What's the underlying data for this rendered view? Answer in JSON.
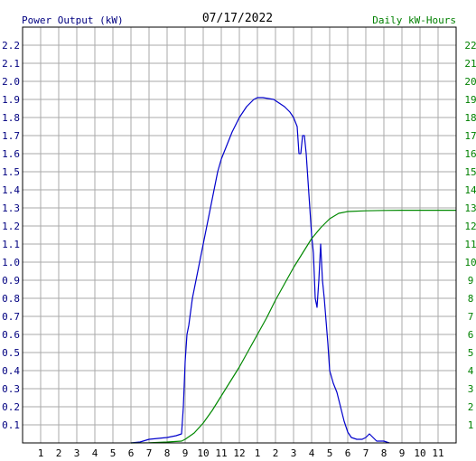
{
  "chart_data": {
    "type": "line",
    "title": "07/17/2022",
    "ylabel_left": "Power Output (kW)",
    "ylabel_right": "Daily kW-Hours",
    "x_ticks": [
      "1",
      "2",
      "3",
      "4",
      "5",
      "6",
      "7",
      "8",
      "9",
      "10",
      "11",
      "12",
      "1",
      "2",
      "3",
      "4",
      "5",
      "6",
      "7",
      "8",
      "9",
      "10",
      "11"
    ],
    "x_range": [
      0,
      24
    ],
    "ylim_left": [
      0,
      2.3
    ],
    "ylim_right": [
      0,
      23
    ],
    "y_ticks_left": [
      "0.1",
      "0.2",
      "0.3",
      "0.4",
      "0.5",
      "0.6",
      "0.7",
      "0.8",
      "0.9",
      "1.0",
      "1.1",
      "1.2",
      "1.3",
      "1.4",
      "1.5",
      "1.6",
      "1.7",
      "1.8",
      "1.9",
      "2.0",
      "2.1",
      "2.2"
    ],
    "y_ticks_right": [
      "1",
      "2",
      "3",
      "4",
      "5",
      "6",
      "7",
      "8",
      "9",
      "10",
      "11",
      "12",
      "13",
      "14",
      "15",
      "16",
      "17",
      "18",
      "19",
      "20",
      "21",
      "22"
    ],
    "grid": true,
    "colors": {
      "power": "#0000cc",
      "energy": "#008800",
      "left_axis_text": "#000080",
      "right_axis_text": "#008000",
      "grid": "#aaaaaa"
    },
    "series": [
      {
        "name": "Power Output (kW)",
        "axis": "left",
        "points": [
          [
            6.0,
            0.0
          ],
          [
            6.5,
            0.005
          ],
          [
            7.0,
            0.02
          ],
          [
            7.5,
            0.025
          ],
          [
            8.0,
            0.03
          ],
          [
            8.5,
            0.04
          ],
          [
            8.8,
            0.05
          ],
          [
            8.9,
            0.2
          ],
          [
            9.0,
            0.45
          ],
          [
            9.1,
            0.6
          ],
          [
            9.2,
            0.65
          ],
          [
            9.4,
            0.8
          ],
          [
            9.6,
            0.9
          ],
          [
            9.8,
            1.0
          ],
          [
            10.0,
            1.1
          ],
          [
            10.2,
            1.2
          ],
          [
            10.4,
            1.3
          ],
          [
            10.6,
            1.4
          ],
          [
            10.8,
            1.5
          ],
          [
            11.0,
            1.57
          ],
          [
            11.2,
            1.62
          ],
          [
            11.4,
            1.67
          ],
          [
            11.6,
            1.72
          ],
          [
            11.8,
            1.76
          ],
          [
            12.0,
            1.8
          ],
          [
            12.2,
            1.83
          ],
          [
            12.4,
            1.86
          ],
          [
            12.6,
            1.88
          ],
          [
            12.8,
            1.9
          ],
          [
            13.0,
            1.91
          ],
          [
            13.3,
            1.91
          ],
          [
            13.6,
            1.905
          ],
          [
            13.9,
            1.9
          ],
          [
            14.2,
            1.88
          ],
          [
            14.5,
            1.86
          ],
          [
            14.8,
            1.83
          ],
          [
            15.0,
            1.8
          ],
          [
            15.2,
            1.75
          ],
          [
            15.3,
            1.6
          ],
          [
            15.4,
            1.6
          ],
          [
            15.5,
            1.7
          ],
          [
            15.6,
            1.7
          ],
          [
            15.7,
            1.6
          ],
          [
            15.9,
            1.3
          ],
          [
            16.0,
            1.15
          ],
          [
            16.1,
            1.05
          ],
          [
            16.2,
            0.8
          ],
          [
            16.3,
            0.75
          ],
          [
            16.4,
            0.9
          ],
          [
            16.5,
            1.1
          ],
          [
            16.6,
            0.9
          ],
          [
            16.7,
            0.8
          ],
          [
            16.9,
            0.55
          ],
          [
            17.0,
            0.4
          ],
          [
            17.2,
            0.33
          ],
          [
            17.4,
            0.28
          ],
          [
            17.6,
            0.2
          ],
          [
            17.8,
            0.12
          ],
          [
            18.0,
            0.06
          ],
          [
            18.2,
            0.03
          ],
          [
            18.5,
            0.02
          ],
          [
            18.8,
            0.02
          ],
          [
            19.0,
            0.03
          ],
          [
            19.2,
            0.05
          ],
          [
            19.4,
            0.03
          ],
          [
            19.6,
            0.01
          ],
          [
            20.0,
            0.01
          ],
          [
            20.3,
            0.0
          ]
        ]
      },
      {
        "name": "Daily kW-Hours",
        "axis": "right",
        "points": [
          [
            6.0,
            0.0
          ],
          [
            7.0,
            0.01
          ],
          [
            8.0,
            0.05
          ],
          [
            8.8,
            0.1
          ],
          [
            9.0,
            0.2
          ],
          [
            9.5,
            0.55
          ],
          [
            10.0,
            1.1
          ],
          [
            10.5,
            1.8
          ],
          [
            11.0,
            2.6
          ],
          [
            11.5,
            3.4
          ],
          [
            12.0,
            4.2
          ],
          [
            12.5,
            5.1
          ],
          [
            13.0,
            6.0
          ],
          [
            13.5,
            6.9
          ],
          [
            14.0,
            7.9
          ],
          [
            14.5,
            8.8
          ],
          [
            15.0,
            9.7
          ],
          [
            15.5,
            10.5
          ],
          [
            16.0,
            11.3
          ],
          [
            16.5,
            11.9
          ],
          [
            17.0,
            12.4
          ],
          [
            17.5,
            12.7
          ],
          [
            18.0,
            12.8
          ],
          [
            19.0,
            12.84
          ],
          [
            20.0,
            12.86
          ],
          [
            21.0,
            12.87
          ],
          [
            22.0,
            12.87
          ],
          [
            23.0,
            12.87
          ],
          [
            24.0,
            12.87
          ]
        ]
      }
    ]
  }
}
